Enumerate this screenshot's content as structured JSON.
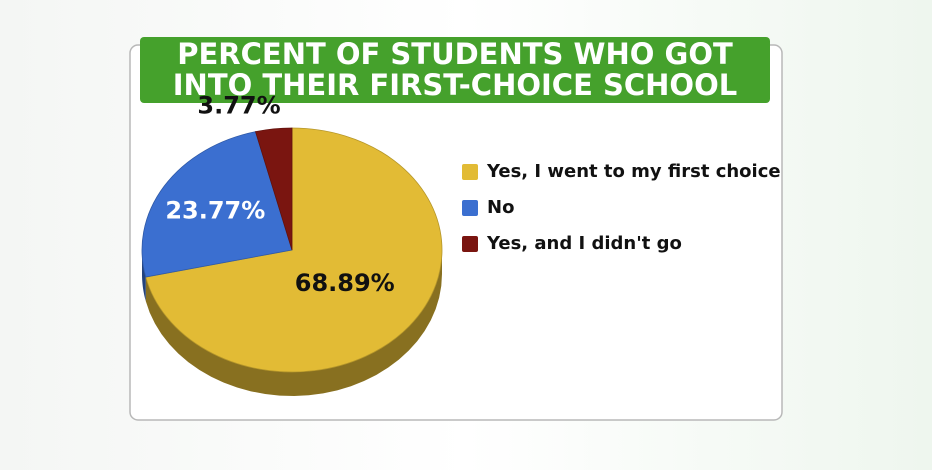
{
  "chart_data": {
    "type": "pie",
    "title": [
      "PERCENT OF STUDENTS WHO GOT",
      "INTO THEIR FIRST-CHOICE SCHOOL"
    ],
    "categories": [
      "Yes, I went to my first choice",
      "No",
      "Yes, and I didn't go"
    ],
    "values": [
      68.89,
      23.77,
      3.77
    ],
    "value_labels": [
      "68.89%",
      "23.77%",
      "3.77%"
    ],
    "colors": [
      "#e2bb35",
      "#3b6fd0",
      "#7a1510"
    ],
    "legend": "right"
  }
}
